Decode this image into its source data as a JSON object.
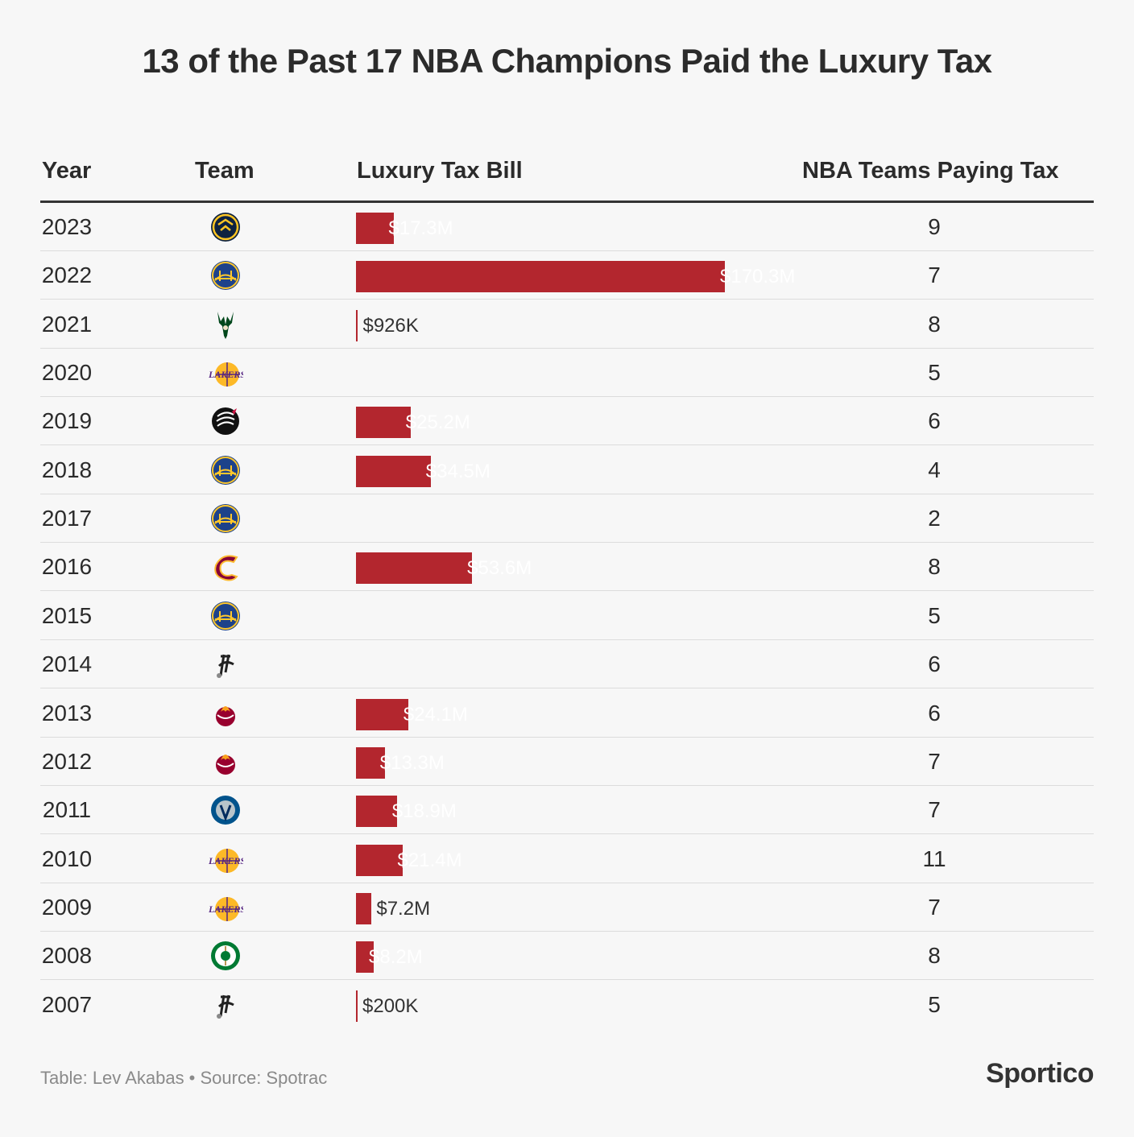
{
  "title": "13 of the Past 17 NBA Champions Paid the Luxury Tax",
  "headers": {
    "year": "Year",
    "team": "Team",
    "tax_bill": "Luxury Tax Bill",
    "teams_paying": "NBA Teams Paying Tax"
  },
  "chart_data": {
    "type": "table",
    "bar_color": "#b3262e",
    "columns": [
      "Year",
      "Team",
      "Luxury Tax Bill",
      "NBA Teams Paying Tax"
    ],
    "rows": [
      {
        "year": "2023",
        "team_icon": "nuggets-logo-icon",
        "tax_m": 17.3,
        "tax_label": "$17.3M",
        "teams_paying": "9"
      },
      {
        "year": "2022",
        "team_icon": "warriors-logo-icon",
        "tax_m": 170.3,
        "tax_label": "$170.3M",
        "teams_paying": "7"
      },
      {
        "year": "2021",
        "team_icon": "bucks-logo-icon",
        "tax_m": 0.926,
        "tax_label": "$926K",
        "teams_paying": "8"
      },
      {
        "year": "2020",
        "team_icon": "lakers-logo-icon",
        "tax_m": 0,
        "tax_label": "",
        "teams_paying": "5"
      },
      {
        "year": "2019",
        "team_icon": "raptors-logo-icon",
        "tax_m": 25.2,
        "tax_label": "$25.2M",
        "teams_paying": "6"
      },
      {
        "year": "2018",
        "team_icon": "warriors-logo-icon",
        "tax_m": 34.5,
        "tax_label": "$34.5M",
        "teams_paying": "4"
      },
      {
        "year": "2017",
        "team_icon": "warriors-logo-icon",
        "tax_m": 0,
        "tax_label": "",
        "teams_paying": "2"
      },
      {
        "year": "2016",
        "team_icon": "cavaliers-logo-icon",
        "tax_m": 53.6,
        "tax_label": "$53.6M",
        "teams_paying": "8"
      },
      {
        "year": "2015",
        "team_icon": "warriors-logo-icon",
        "tax_m": 0,
        "tax_label": "",
        "teams_paying": "5"
      },
      {
        "year": "2014",
        "team_icon": "spurs-logo-icon",
        "tax_m": 0,
        "tax_label": "",
        "teams_paying": "6"
      },
      {
        "year": "2013",
        "team_icon": "heat-logo-icon",
        "tax_m": 24.1,
        "tax_label": "$24.1M",
        "teams_paying": "6"
      },
      {
        "year": "2012",
        "team_icon": "heat-logo-icon",
        "tax_m": 13.3,
        "tax_label": "$13.3M",
        "teams_paying": "7"
      },
      {
        "year": "2011",
        "team_icon": "mavericks-logo-icon",
        "tax_m": 18.9,
        "tax_label": "$18.9M",
        "teams_paying": "7"
      },
      {
        "year": "2010",
        "team_icon": "lakers-logo-icon",
        "tax_m": 21.4,
        "tax_label": "$21.4M",
        "teams_paying": "11"
      },
      {
        "year": "2009",
        "team_icon": "lakers-logo-icon",
        "tax_m": 7.2,
        "tax_label": "$7.2M",
        "teams_paying": "7"
      },
      {
        "year": "2008",
        "team_icon": "celtics-logo-icon",
        "tax_m": 8.2,
        "tax_label": "$8.2M",
        "teams_paying": "8"
      },
      {
        "year": "2007",
        "team_icon": "spurs-logo-icon",
        "tax_m": 0.2,
        "tax_label": "$200K",
        "teams_paying": "5"
      }
    ]
  },
  "footer": {
    "source": "Table: Lev Akabas • Source: Spotrac",
    "brand": "Sportico"
  }
}
